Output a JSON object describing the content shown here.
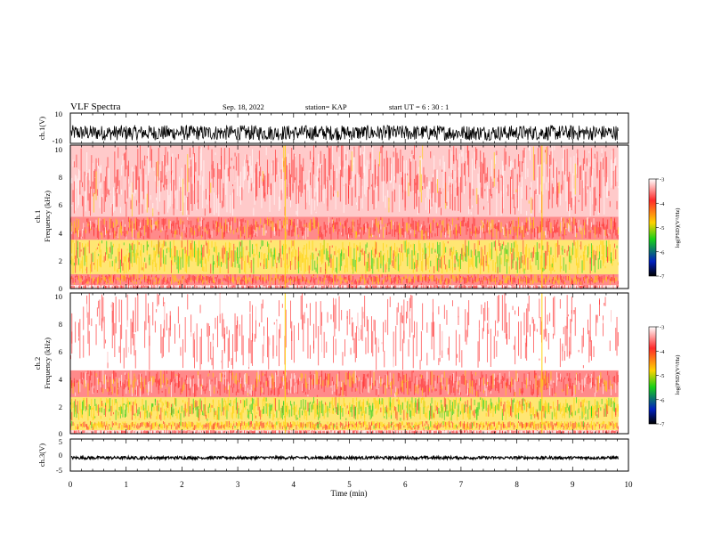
{
  "header": {
    "title": "VLF Spectra",
    "date": "Sep. 18, 2022",
    "station": "station= KAP",
    "start": "start  UT =   6 : 30 : 1"
  },
  "colorbar": {
    "label": "log(PSD)(V²/Hz)",
    "ticks": [
      "-3",
      "-4",
      "-5",
      "-6",
      "-7"
    ],
    "colors": [
      "#ffffff",
      "#ff2a2a",
      "#ffd200",
      "#18d018",
      "#0020c0",
      "#000000"
    ]
  },
  "chart_data": [
    {
      "type": "line",
      "name": "ch1-waveform",
      "ylabel": "ch.1(V)",
      "ylim": [
        -10,
        10
      ],
      "yticks": [
        "10",
        "-10"
      ],
      "xlim": [
        0,
        10
      ],
      "values_range": [
        -8,
        2
      ],
      "baseline": -3
    },
    {
      "type": "heatmap",
      "name": "ch1-spectrogram",
      "ylabel": "ch.1\nFrequency (kHz)",
      "ylim": [
        0,
        10
      ],
      "yticks": [
        "10",
        "8",
        "6",
        "4",
        "2",
        "0"
      ],
      "xlim": [
        0,
        9.82
      ],
      "bands": [
        {
          "from": 0.0,
          "to": 0.25,
          "level": -3.5
        },
        {
          "from": 0.25,
          "to": 1.0,
          "level": -4.3
        },
        {
          "from": 1.0,
          "to": 3.4,
          "level": -4.8
        },
        {
          "from": 3.4,
          "to": 5.0,
          "level": -4.0
        },
        {
          "from": 5.0,
          "to": 10.0,
          "level": -3.6
        }
      ],
      "bright_lines_min": [
        3.85,
        8.45
      ]
    },
    {
      "type": "heatmap",
      "name": "ch2-spectrogram",
      "ylabel": "ch.2\nFrequency (kHz)",
      "ylim": [
        0,
        10
      ],
      "yticks": [
        "10",
        "8",
        "6",
        "4",
        "2",
        "0"
      ],
      "xlim": [
        0,
        9.82
      ],
      "bands": [
        {
          "from": 0.0,
          "to": 0.25,
          "level": -3.5
        },
        {
          "from": 0.25,
          "to": 0.9,
          "level": -4.4
        },
        {
          "from": 0.9,
          "to": 2.6,
          "level": -4.9
        },
        {
          "from": 2.6,
          "to": 4.5,
          "level": -3.9
        },
        {
          "from": 4.5,
          "to": 10.0,
          "level": -3.4
        }
      ],
      "bright_lines_min": [
        3.85,
        8.45
      ]
    },
    {
      "type": "line",
      "name": "ch3-waveform",
      "ylabel": "ch.3(V)",
      "ylim": [
        -5,
        5
      ],
      "yticks": [
        "5",
        "0",
        "-5"
      ],
      "xlim": [
        0,
        10
      ],
      "values_range": [
        -1.3,
        -0.4
      ],
      "baseline": -0.9,
      "xlabel": "Time  (min)",
      "xticks": [
        "0",
        "1",
        "2",
        "3",
        "4",
        "5",
        "6",
        "7",
        "8",
        "9",
        "10"
      ]
    }
  ]
}
